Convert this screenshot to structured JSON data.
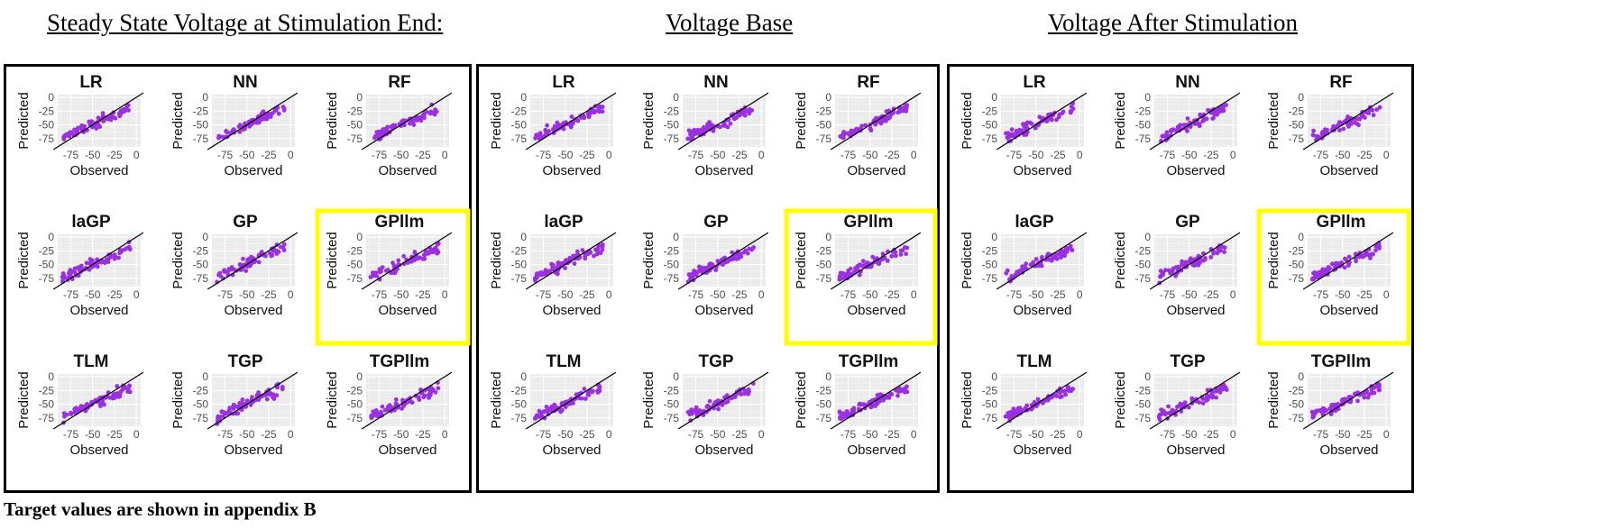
{
  "footer": "Target values are shown in appendix B",
  "colors": {
    "points": "#9b30e0",
    "panel_bg": "#ebebeb",
    "grid": "#ffffff",
    "highlight": "#ffff00",
    "line": "#000000"
  },
  "chart_data": [
    {
      "title": "Steady State Voltage at Stimulation End:",
      "type": "scatter",
      "xlabel": "Observed",
      "ylabel": "Predicted",
      "xlim": [
        -90,
        5
      ],
      "ylim": [
        -90,
        5
      ],
      "xticks": [
        "-75",
        "-50",
        "-25",
        "0"
      ],
      "yticks": [
        "0",
        "-25",
        "-50",
        "-75"
      ],
      "reference_line": "y = x",
      "highlighted_panel": "GPllm",
      "panels": [
        "LR",
        "NN",
        "RF",
        "laGP",
        "GP",
        "GPllm",
        "TLM",
        "TGP",
        "TGPllm"
      ]
    },
    {
      "title": "Voltage Base",
      "type": "scatter",
      "xlabel": "Observed",
      "ylabel": "Predicted",
      "xlim": [
        -90,
        5
      ],
      "ylim": [
        -90,
        5
      ],
      "xticks": [
        "-75",
        "-50",
        "-25",
        "0"
      ],
      "yticks": [
        "0",
        "-25",
        "-50",
        "-75"
      ],
      "reference_line": "y = x",
      "highlighted_panel": "GPllm",
      "panels": [
        "LR",
        "NN",
        "RF",
        "laGP",
        "GP",
        "GPllm",
        "TLM",
        "TGP",
        "TGPllm"
      ]
    },
    {
      "title": "Voltage After Stimulation",
      "type": "scatter",
      "xlabel": "Observed",
      "ylabel": "Predicted",
      "xlim": [
        -90,
        5
      ],
      "ylim": [
        -90,
        5
      ],
      "xticks": [
        "-75",
        "-50",
        "-25",
        "0"
      ],
      "yticks": [
        "0",
        "-25",
        "-50",
        "-75"
      ],
      "reference_line": "y = x",
      "highlighted_panel": "GPllm",
      "panels": [
        "LR",
        "NN",
        "RF",
        "laGP",
        "GP",
        "GPllm",
        "TLM",
        "TGP",
        "TGPllm"
      ]
    }
  ]
}
